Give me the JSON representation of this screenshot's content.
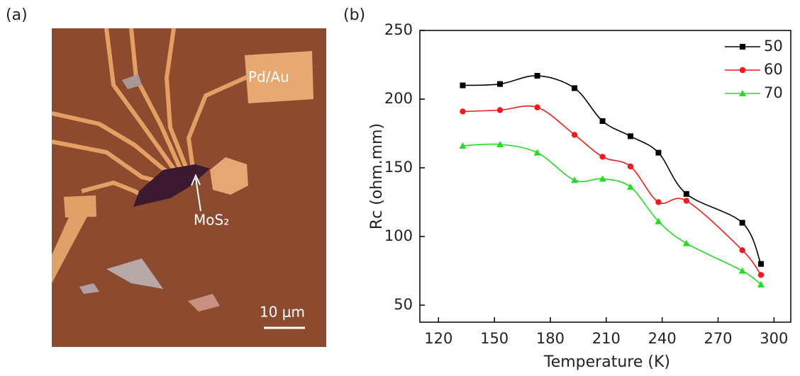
{
  "panel_a": {
    "label": "(a)",
    "pad_label": "Pd/Au",
    "flake_label": "MoS₂",
    "scale_bar": "10 μm"
  },
  "chart_data": {
    "type": "line",
    "panel_label": "(b)",
    "x_label": "Temperature (K)",
    "y_label": "Rc (ohm.mm)",
    "x": [
      133,
      153,
      173,
      193,
      208,
      223,
      238,
      253,
      283,
      293
    ],
    "series": [
      {
        "name": "50",
        "color": "#000000",
        "marker": "square",
        "values": [
          210,
          211,
          217,
          208,
          184,
          173,
          161,
          131,
          110,
          80
        ]
      },
      {
        "name": "60",
        "color": "#ee1c1c",
        "marker": "circle",
        "values": [
          191,
          192,
          194,
          174,
          158,
          151,
          125,
          126,
          90,
          72
        ]
      },
      {
        "name": "70",
        "color": "#22dd22",
        "marker": "triangle",
        "values": [
          166,
          167,
          161,
          141,
          142,
          136,
          111,
          95,
          75,
          65
        ]
      }
    ],
    "xlim": [
      110,
      309
    ],
    "ylim": [
      37.6,
      250
    ],
    "xticks": [
      120,
      150,
      180,
      210,
      240,
      270,
      300
    ],
    "yticks": [
      50,
      100,
      150,
      200,
      250
    ],
    "legend": "upper right",
    "smooth": true
  }
}
